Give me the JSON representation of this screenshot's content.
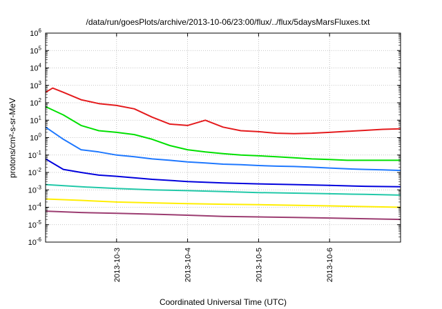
{
  "chart_data": {
    "type": "line",
    "title": "/data/run/goesPlots/archive/2013-10-06/23:00/flux/../flux/5daysMarsFluxes.txt",
    "xlabel": "Coordinated Universal Time (UTC)",
    "ylabel": "protons/cm²-s-sr-MeV",
    "yscale": "log",
    "ylim": [
      1e-06,
      1000000.0
    ],
    "xlim": [
      "2013-10-02 00:00",
      "2013-10-07 00:00"
    ],
    "grid": true,
    "x_ticks": [
      "2013-10-3",
      "2013-10-4",
      "2013-10-5",
      "2013-10-6"
    ],
    "y_ticks": [
      {
        "base": "10",
        "exp": "6"
      },
      {
        "base": "10",
        "exp": "5"
      },
      {
        "base": "10",
        "exp": "4"
      },
      {
        "base": "10",
        "exp": "3"
      },
      {
        "base": "10",
        "exp": "2"
      },
      {
        "base": "10",
        "exp": "1"
      },
      {
        "base": "10",
        "exp": "0"
      },
      {
        "base": "10",
        "exp": "-1"
      },
      {
        "base": "10",
        "exp": "-2"
      },
      {
        "base": "10",
        "exp": "-3"
      },
      {
        "base": "10",
        "exp": "-4"
      },
      {
        "base": "10",
        "exp": "-5"
      },
      {
        "base": "10",
        "exp": "-6"
      }
    ],
    "series": [
      {
        "color": "#e41a1c",
        "x": [
          "2013-10-02 00:00",
          "2013-10-02 02:24",
          "2013-10-02 06:00",
          "2013-10-02 12:00",
          "2013-10-02 18:00",
          "2013-10-03 00:00",
          "2013-10-03 06:00",
          "2013-10-03 12:00",
          "2013-10-03 18:00",
          "2013-10-04 00:00",
          "2013-10-04 06:00",
          "2013-10-04 12:00",
          "2013-10-04 18:00",
          "2013-10-05 00:00",
          "2013-10-05 06:00",
          "2013-10-05 12:00",
          "2013-10-05 18:00",
          "2013-10-06 00:00",
          "2013-10-06 06:00",
          "2013-10-06 12:00",
          "2013-10-06 18:00",
          "2013-10-07 00:00"
        ],
        "values": [
          400,
          700,
          400,
          150,
          90,
          70,
          45,
          15,
          6,
          5,
          10,
          4,
          2.5,
          2.2,
          1.8,
          1.7,
          1.8,
          2.0,
          2.3,
          2.6,
          3.0,
          3.2
        ]
      },
      {
        "color": "#00e000",
        "x": [
          "2013-10-02 00:00",
          "2013-10-02 06:00",
          "2013-10-02 12:00",
          "2013-10-02 18:00",
          "2013-10-03 00:00",
          "2013-10-03 06:00",
          "2013-10-03 12:00",
          "2013-10-03 18:00",
          "2013-10-04 00:00",
          "2013-10-04 06:00",
          "2013-10-04 12:00",
          "2013-10-04 18:00",
          "2013-10-05 00:00",
          "2013-10-05 06:00",
          "2013-10-05 12:00",
          "2013-10-05 18:00",
          "2013-10-06 00:00",
          "2013-10-06 06:00",
          "2013-10-06 12:00",
          "2013-10-06 18:00",
          "2013-10-07 00:00"
        ],
        "values": [
          60,
          20,
          5,
          2.5,
          2,
          1.5,
          0.8,
          0.35,
          0.2,
          0.15,
          0.12,
          0.1,
          0.09,
          0.08,
          0.07,
          0.06,
          0.055,
          0.05,
          0.05,
          0.05,
          0.05
        ]
      },
      {
        "color": "#1e78ff",
        "x": [
          "2013-10-02 00:00",
          "2013-10-02 06:00",
          "2013-10-02 12:00",
          "2013-10-02 18:00",
          "2013-10-03 00:00",
          "2013-10-03 06:00",
          "2013-10-03 12:00",
          "2013-10-03 18:00",
          "2013-10-04 00:00",
          "2013-10-04 06:00",
          "2013-10-04 12:00",
          "2013-10-04 18:00",
          "2013-10-05 00:00",
          "2013-10-05 06:00",
          "2013-10-05 12:00",
          "2013-10-05 18:00",
          "2013-10-06 00:00",
          "2013-10-06 06:00",
          "2013-10-06 12:00",
          "2013-10-06 18:00",
          "2013-10-07 00:00"
        ],
        "values": [
          4,
          0.8,
          0.2,
          0.15,
          0.1,
          0.08,
          0.06,
          0.05,
          0.04,
          0.035,
          0.03,
          0.028,
          0.025,
          0.023,
          0.022,
          0.02,
          0.018,
          0.016,
          0.015,
          0.014,
          0.013
        ]
      },
      {
        "color": "#0000dd",
        "x": [
          "2013-10-02 00:00",
          "2013-10-02 06:00",
          "2013-10-02 12:00",
          "2013-10-02 18:00",
          "2013-10-03 00:00",
          "2013-10-03 12:00",
          "2013-10-04 00:00",
          "2013-10-04 12:00",
          "2013-10-05 00:00",
          "2013-10-05 12:00",
          "2013-10-06 00:00",
          "2013-10-06 12:00",
          "2013-10-07 00:00"
        ],
        "values": [
          0.06,
          0.015,
          0.01,
          0.007,
          0.006,
          0.004,
          0.003,
          0.0025,
          0.0022,
          0.002,
          0.0018,
          0.0016,
          0.0015
        ]
      },
      {
        "color": "#20c8a8",
        "x": [
          "2013-10-02 00:00",
          "2013-10-02 12:00",
          "2013-10-03 00:00",
          "2013-10-03 12:00",
          "2013-10-04 00:00",
          "2013-10-04 12:00",
          "2013-10-05 00:00",
          "2013-10-05 12:00",
          "2013-10-06 00:00",
          "2013-10-06 12:00",
          "2013-10-07 00:00"
        ],
        "values": [
          0.002,
          0.0015,
          0.0012,
          0.001,
          0.0009,
          0.0008,
          0.0007,
          0.00065,
          0.0006,
          0.00055,
          0.0005
        ]
      },
      {
        "color": "#ffee00",
        "x": [
          "2013-10-02 00:00",
          "2013-10-02 12:00",
          "2013-10-03 00:00",
          "2013-10-03 12:00",
          "2013-10-04 00:00",
          "2013-10-04 12:00",
          "2013-10-05 00:00",
          "2013-10-05 12:00",
          "2013-10-06 00:00",
          "2013-10-06 12:00",
          "2013-10-07 00:00"
        ],
        "values": [
          0.0003,
          0.00025,
          0.0002,
          0.00018,
          0.00016,
          0.00015,
          0.00014,
          0.00013,
          0.00012,
          0.00011,
          0.0001
        ]
      },
      {
        "color": "#9b3b70",
        "x": [
          "2013-10-02 00:00",
          "2013-10-02 12:00",
          "2013-10-03 00:00",
          "2013-10-03 12:00",
          "2013-10-04 00:00",
          "2013-10-04 12:00",
          "2013-10-05 00:00",
          "2013-10-05 12:00",
          "2013-10-06 00:00",
          "2013-10-06 12:00",
          "2013-10-07 00:00"
        ],
        "values": [
          6e-05,
          5e-05,
          4.5e-05,
          4e-05,
          3.5e-05,
          3e-05,
          2.8e-05,
          2.6e-05,
          2.4e-05,
          2.2e-05,
          2e-05
        ]
      }
    ]
  }
}
